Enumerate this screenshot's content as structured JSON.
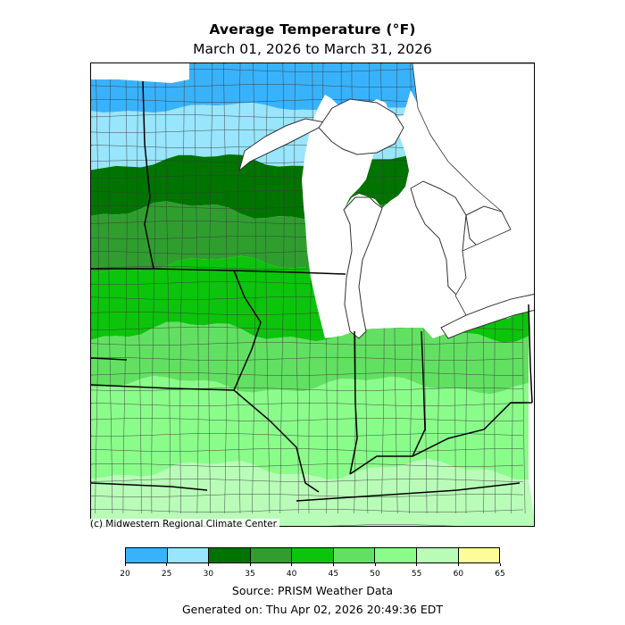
{
  "header": {
    "title": "Average Temperature (°F)",
    "subtitle": "March 01, 2026 to March 31, 2026"
  },
  "map": {
    "credit": "(c) Midwestern Regional Climate Center",
    "legend_bins": [
      {
        "range": "20-25",
        "color": "#39b2fc"
      },
      {
        "range": "25-30",
        "color": "#98e5fc"
      },
      {
        "range": "30-35",
        "color": "#007400"
      },
      {
        "range": "35-40",
        "color": "#2f9e2f"
      },
      {
        "range": "40-45",
        "color": "#0bc40b"
      },
      {
        "range": "45-50",
        "color": "#62e062"
      },
      {
        "range": "50-55",
        "color": "#8afc8a"
      },
      {
        "range": "55-60",
        "color": "#b8fcb8"
      },
      {
        "range": "60-65",
        "color": "#fcfc98"
      }
    ],
    "tick_labels": [
      "20",
      "25",
      "30",
      "35",
      "40",
      "45",
      "50",
      "55",
      "60",
      "65"
    ],
    "colors": {
      "water": "#ffffff",
      "state_border": "#000000",
      "county_border": "#3a3a3a"
    }
  },
  "footer": {
    "source": "Source: PRISM Weather Data",
    "generated": "Generated on: Thu Apr 02, 2026 20:49:36 EDT"
  }
}
